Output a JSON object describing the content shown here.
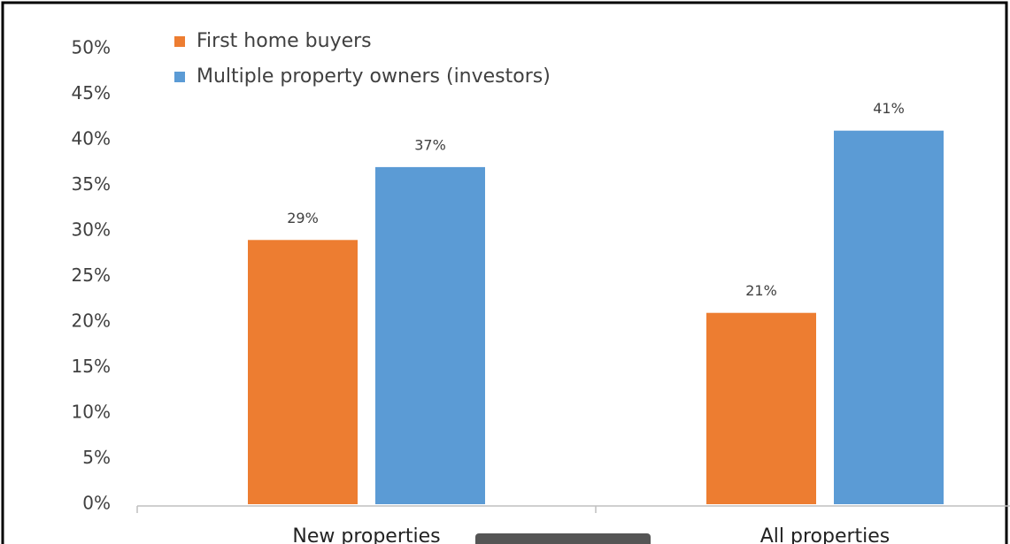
{
  "chart_data": {
    "type": "bar",
    "categories": [
      "New properties",
      "All properties"
    ],
    "series": [
      {
        "name": "First home buyers",
        "color": "#ed7d31",
        "values": [
          29,
          21
        ],
        "value_labels": [
          "29%",
          "21%"
        ]
      },
      {
        "name": "Multiple property owners (investors)",
        "color": "#5b9bd5",
        "values": [
          37,
          41
        ],
        "value_labels": [
          "37%",
          "41%"
        ]
      }
    ],
    "ylim": [
      0,
      50
    ],
    "yticks": [
      {
        "value": 0,
        "label": "0%"
      },
      {
        "value": 5,
        "label": "5%"
      },
      {
        "value": 10,
        "label": "10%"
      },
      {
        "value": 15,
        "label": "15%"
      },
      {
        "value": 20,
        "label": "20%"
      },
      {
        "value": 25,
        "label": "25%"
      },
      {
        "value": 30,
        "label": "30%"
      },
      {
        "value": 35,
        "label": "35%"
      },
      {
        "value": 40,
        "label": "40%"
      },
      {
        "value": 45,
        "label": "45%"
      },
      {
        "value": 50,
        "label": "50%"
      }
    ],
    "grid": false,
    "legend": "top-left"
  }
}
